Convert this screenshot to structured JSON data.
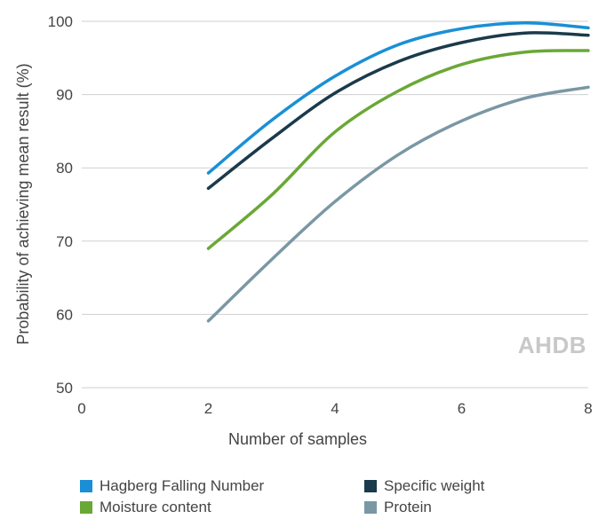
{
  "chart_data": {
    "type": "line",
    "title": "",
    "xlabel": "Number of samples",
    "ylabel": "Probability of achieving mean result (%)",
    "xlim": [
      0,
      8
    ],
    "ylim": [
      50,
      100
    ],
    "xticks": [
      0,
      2,
      4,
      6,
      8
    ],
    "yticks": [
      50,
      60,
      70,
      80,
      90,
      100
    ],
    "grid": "horizontal",
    "legend_position": "bottom",
    "watermark": "AHDB",
    "series": [
      {
        "name": "Hagberg Falling Number",
        "color": "#1a8fd6",
        "x": [
          2,
          3,
          4,
          5,
          6,
          7,
          8
        ],
        "y": [
          79.3,
          86.5,
          92.5,
          96.8,
          99.0,
          99.8,
          99.1
        ]
      },
      {
        "name": "Specific weight",
        "color": "#1b3a4b",
        "x": [
          2,
          3,
          4,
          5,
          6,
          7,
          8
        ],
        "y": [
          77.2,
          84.0,
          90.2,
          94.5,
          97.1,
          98.4,
          98.1
        ]
      },
      {
        "name": "Moisture content",
        "color": "#6aa836",
        "x": [
          2,
          3,
          4,
          5,
          6,
          7,
          8
        ],
        "y": [
          69.0,
          76.3,
          84.9,
          90.5,
          94.1,
          95.8,
          96.0
        ]
      },
      {
        "name": "Protein",
        "color": "#7a97a4",
        "x": [
          2,
          3,
          4,
          5,
          6,
          7,
          8
        ],
        "y": [
          59.1,
          67.5,
          75.4,
          81.8,
          86.4,
          89.5,
          91.0
        ]
      }
    ]
  }
}
